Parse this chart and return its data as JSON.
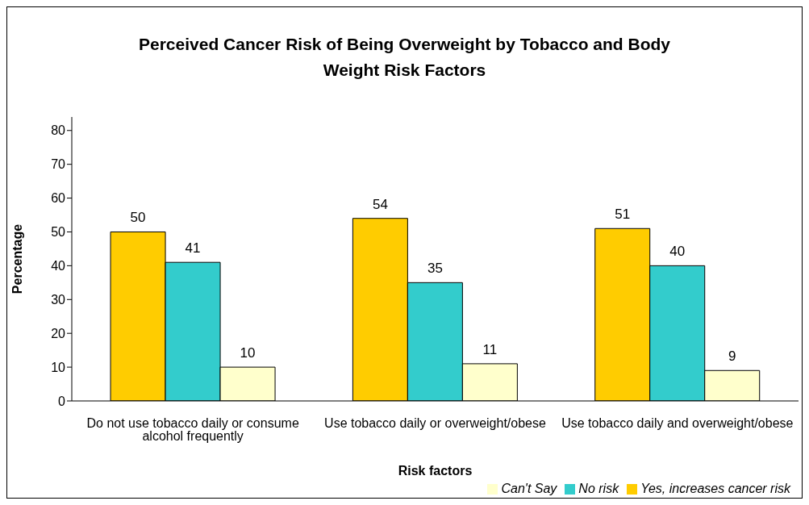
{
  "chart_data": {
    "type": "bar",
    "title": "Perceived Cancer Risk of Being Overweight by Tobacco and Body Weight Risk Factors",
    "xlabel": "Risk factors",
    "ylabel": "Percentage",
    "categories": [
      "Do not use tobacco daily or consume alcohol frequently",
      "Use tobacco daily or overweight/obese",
      "Use tobacco daily and overweight/obese"
    ],
    "series": [
      {
        "name": "Yes, increases cancer risk",
        "color": "#ffcc00",
        "values": [
          50,
          54,
          51
        ]
      },
      {
        "name": "No risk",
        "color": "#33cccc",
        "values": [
          41,
          35,
          40
        ]
      },
      {
        "name": "Can't Say",
        "color": "#ffffcc",
        "values": [
          10,
          11,
          9
        ]
      }
    ],
    "ylim": [
      0,
      84
    ],
    "yticks": [
      0,
      10,
      20,
      30,
      40,
      50,
      60,
      70,
      80
    ],
    "data_labels": true,
    "legend": "bottom right"
  }
}
